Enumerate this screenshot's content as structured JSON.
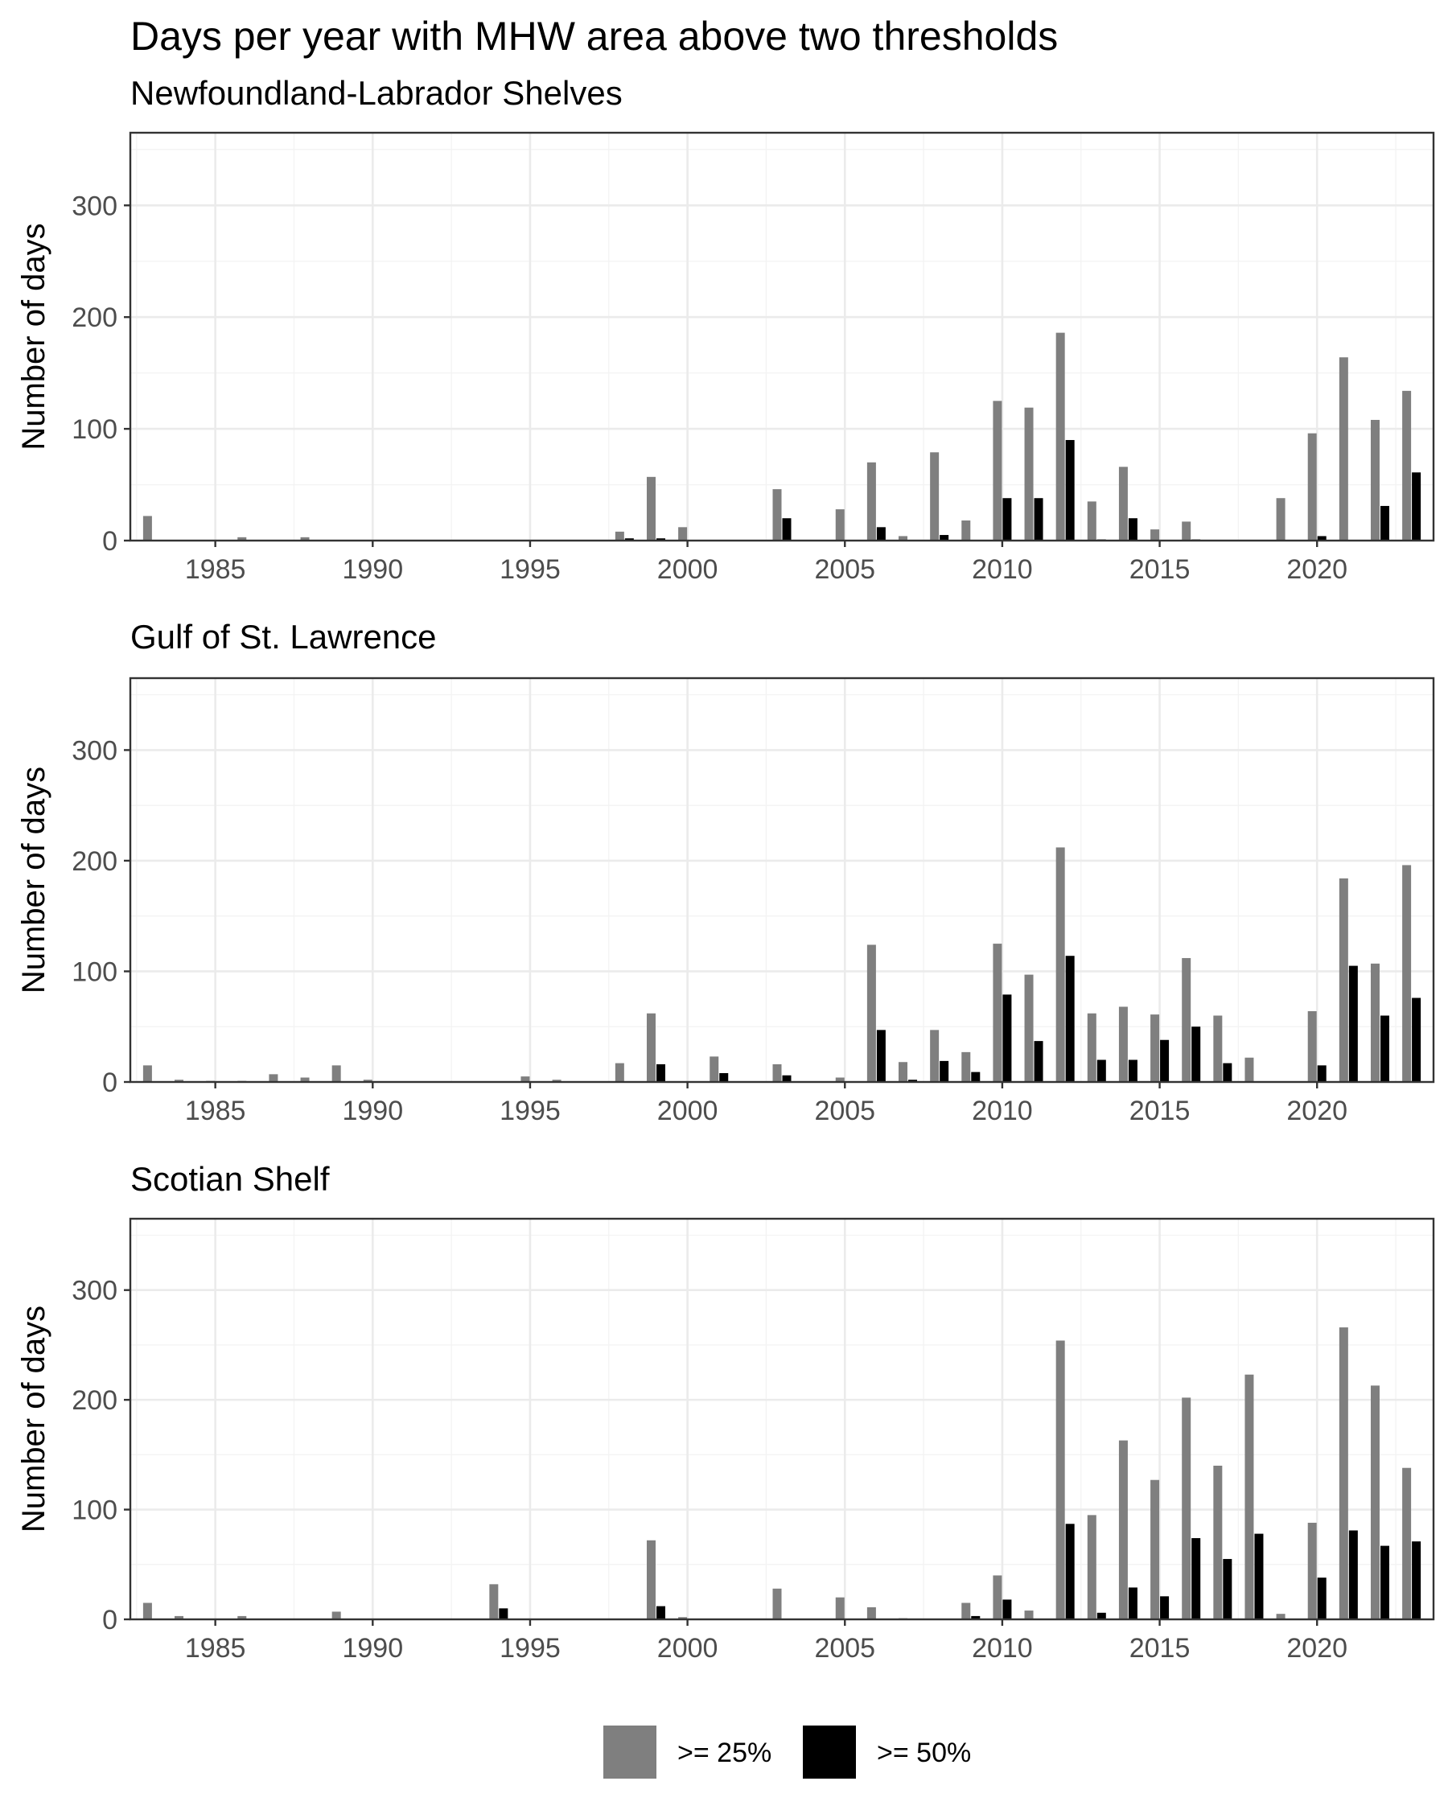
{
  "chart_data": {
    "type": "bar",
    "title": "Days per year with MHW area above two thresholds",
    "ylabel": "Number of days",
    "xlabel": "",
    "xlim": [
      1982.3,
      2023.7
    ],
    "ylim": [
      0,
      365
    ],
    "x_ticks": [
      1985,
      1990,
      1995,
      2000,
      2005,
      2010,
      2015,
      2020
    ],
    "y_ticks": [
      0,
      100,
      200,
      300
    ],
    "grid": true,
    "legend": {
      "position": "bottom",
      "entries": [
        {
          "label": ">= 25%",
          "color": "#7f7f7f"
        },
        {
          "label": ">= 50%",
          "color": "#000000"
        }
      ]
    },
    "years": [
      1983,
      1984,
      1985,
      1986,
      1987,
      1988,
      1989,
      1990,
      1991,
      1992,
      1993,
      1994,
      1995,
      1996,
      1997,
      1998,
      1999,
      2000,
      2001,
      2002,
      2003,
      2004,
      2005,
      2006,
      2007,
      2008,
      2009,
      2010,
      2011,
      2012,
      2013,
      2014,
      2015,
      2016,
      2017,
      2018,
      2019,
      2020,
      2021,
      2022,
      2023
    ],
    "panels": [
      {
        "name": "Newfoundland-Labrador Shelves",
        "series": [
          {
            "name": ">= 25%",
            "values": [
              22,
              0,
              0,
              3,
              0,
              3,
              0,
              0,
              0,
              0,
              0,
              0,
              0,
              0,
              0,
              8,
              57,
              12,
              0,
              0,
              46,
              0,
              28,
              70,
              4,
              79,
              18,
              125,
              119,
              186,
              35,
              66,
              10,
              17,
              0,
              0,
              38,
              96,
              164,
              108,
              134
            ]
          },
          {
            "name": ">= 50%",
            "values": [
              0,
              0,
              0,
              0,
              0,
              0,
              0,
              0,
              0,
              0,
              0,
              0,
              0,
              0,
              0,
              2,
              2,
              0,
              0,
              0,
              20,
              0,
              0,
              12,
              0,
              5,
              0,
              38,
              38,
              90,
              1,
              20,
              0,
              1,
              0,
              0,
              0,
              4,
              0,
              31,
              61
            ]
          }
        ]
      },
      {
        "name": "Gulf of St. Lawrence",
        "series": [
          {
            "name": ">= 25%",
            "values": [
              15,
              2,
              1,
              1,
              7,
              4,
              15,
              2,
              0,
              0,
              0,
              0,
              5,
              2,
              0,
              17,
              62,
              0,
              23,
              0,
              16,
              0,
              4,
              124,
              18,
              47,
              27,
              125,
              97,
              212,
              62,
              68,
              61,
              112,
              60,
              22,
              0,
              64,
              184,
              107,
              196
            ]
          },
          {
            "name": ">= 50%",
            "values": [
              0,
              0,
              0,
              0,
              0,
              0,
              0,
              0,
              0,
              0,
              0,
              0,
              0,
              0,
              0,
              0,
              16,
              0,
              8,
              0,
              6,
              0,
              0,
              47,
              2,
              19,
              9,
              79,
              37,
              114,
              20,
              20,
              38,
              50,
              17,
              0,
              0,
              15,
              105,
              60,
              76
            ]
          }
        ]
      },
      {
        "name": "Scotian Shelf",
        "series": [
          {
            "name": ">= 25%",
            "values": [
              15,
              3,
              0,
              3,
              0,
              0,
              7,
              0,
              0,
              0,
              0,
              32,
              0,
              0,
              0,
              0,
              72,
              2,
              0,
              0,
              28,
              0,
              20,
              11,
              1,
              0,
              15,
              40,
              8,
              254,
              95,
              163,
              127,
              202,
              140,
              223,
              5,
              88,
              266,
              213,
              138
            ]
          },
          {
            "name": ">= 50%",
            "values": [
              0,
              0,
              0,
              0,
              0,
              0,
              0,
              0,
              0,
              0,
              0,
              10,
              0,
              0,
              0,
              0,
              12,
              0,
              0,
              0,
              0,
              0,
              0,
              0,
              0,
              0,
              3,
              18,
              0,
              87,
              6,
              29,
              21,
              74,
              55,
              78,
              0,
              38,
              81,
              67,
              71
            ]
          }
        ]
      }
    ]
  }
}
